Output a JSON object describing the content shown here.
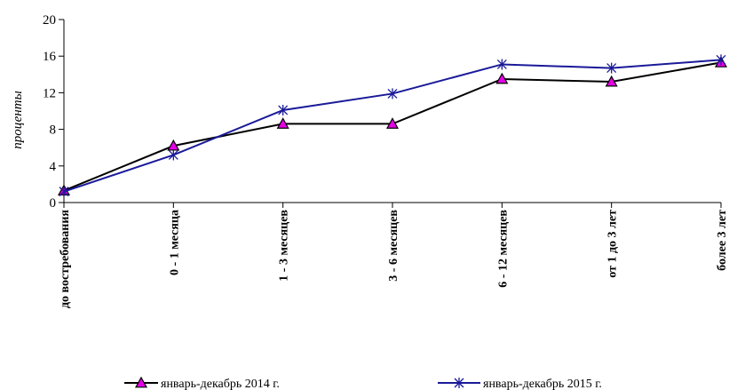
{
  "chart_data": {
    "type": "line",
    "categories": [
      "до востребования",
      "0 - 1 месяца",
      "1 - 3 месяцев",
      "3 - 6 месяцев",
      "6 - 12 месяцев",
      "от 1 до 3 лет",
      "более 3 лет"
    ],
    "series": [
      {
        "name": "январь-декабрь 2014 г.",
        "values": [
          1.3,
          6.2,
          8.6,
          8.6,
          13.5,
          13.2,
          15.3
        ],
        "color": "#000000",
        "marker": "triangle",
        "marker_fill": "#e600e6"
      },
      {
        "name": "январь-декабрь 2015 г.",
        "values": [
          1.2,
          5.2,
          10.1,
          11.9,
          15.1,
          14.7,
          15.6
        ],
        "color": "#1a1a99",
        "marker": "asterisk"
      }
    ],
    "ylabel": "проценты",
    "xlabel": "",
    "ylim": [
      0,
      20
    ],
    "yticks": [
      0,
      4,
      8,
      12,
      16,
      20
    ],
    "legend_position": "bottom",
    "grid": false
  }
}
